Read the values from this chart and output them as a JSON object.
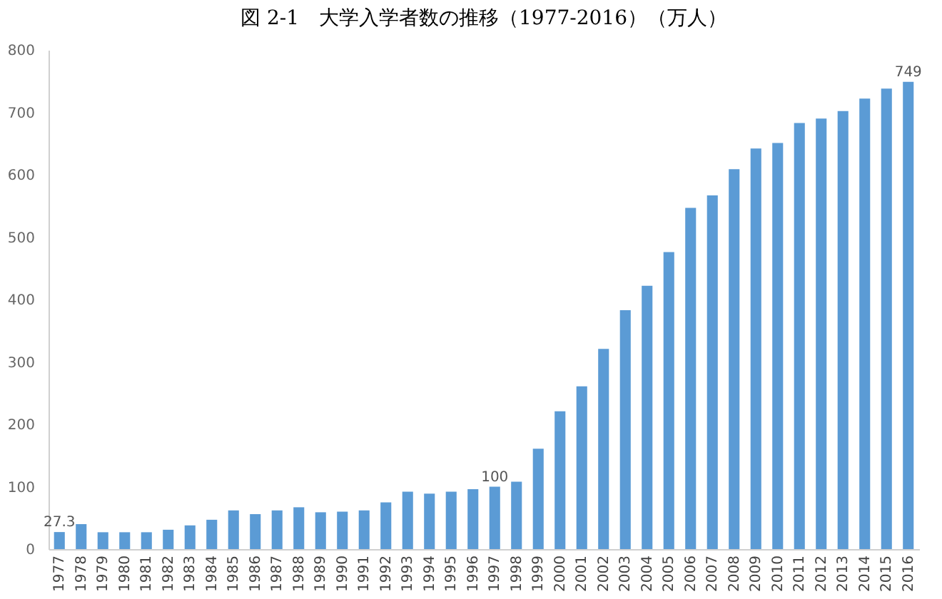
{
  "chart_data": {
    "type": "bar",
    "title": "図 2-1　大学入学者数の推移（1977-2016）（万人）",
    "categories": [
      "1977",
      "1978",
      "1979",
      "1980",
      "1981",
      "1982",
      "1983",
      "1984",
      "1985",
      "1986",
      "1987",
      "1988",
      "1989",
      "1990",
      "1991",
      "1992",
      "1993",
      "1994",
      "1995",
      "1996",
      "1997",
      "1998",
      "1999",
      "2000",
      "2001",
      "2002",
      "2003",
      "2004",
      "2005",
      "2006",
      "2007",
      "2008",
      "2009",
      "2010",
      "2011",
      "2012",
      "2013",
      "2014",
      "2015",
      "2016"
    ],
    "values": [
      27.3,
      40,
      27,
      27,
      27,
      31,
      38,
      47,
      62,
      56,
      62,
      67,
      59,
      60,
      62,
      75,
      92,
      89,
      92,
      96,
      100,
      108,
      161,
      221,
      261,
      321,
      383,
      422,
      476,
      547,
      567,
      609,
      642,
      651,
      683,
      690,
      702,
      722,
      738,
      749
    ],
    "value_labels": [
      "27.3",
      null,
      null,
      null,
      null,
      null,
      null,
      null,
      null,
      null,
      null,
      null,
      null,
      null,
      null,
      null,
      null,
      null,
      null,
      null,
      "100",
      null,
      null,
      null,
      null,
      null,
      null,
      null,
      null,
      null,
      null,
      null,
      null,
      null,
      null,
      null,
      null,
      null,
      null,
      "749"
    ],
    "color": "#5b9bd5",
    "ylim": [
      0,
      800
    ],
    "yticks": [
      0,
      100,
      200,
      300,
      400,
      500,
      600,
      700,
      800
    ],
    "grid": false
  }
}
